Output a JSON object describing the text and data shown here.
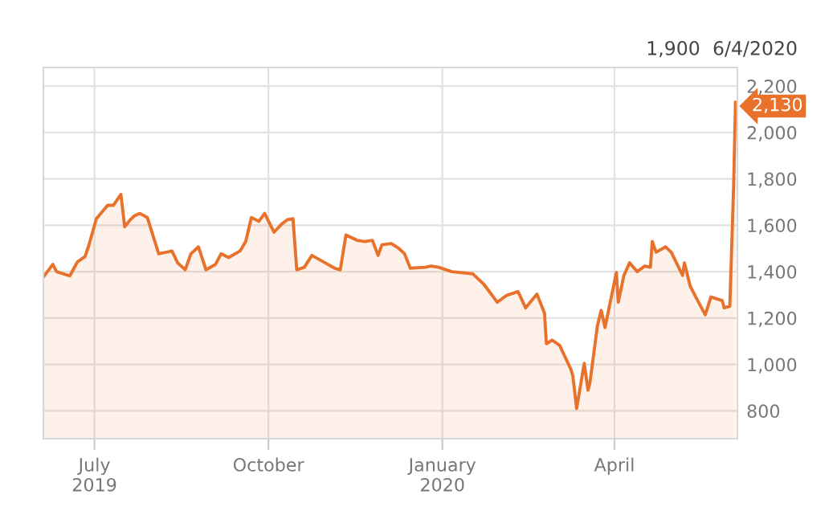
{
  "chart_data": {
    "type": "area",
    "x": [
      "2019-06-04",
      "2019-06-09",
      "2019-06-11",
      "2019-06-18",
      "2019-06-22",
      "2019-06-26",
      "2019-06-28",
      "2019-07-02",
      "2019-07-08",
      "2019-07-11",
      "2019-07-15",
      "2019-07-17",
      "2019-07-20",
      "2019-07-22",
      "2019-07-25",
      "2019-07-29",
      "2019-08-04",
      "2019-08-11",
      "2019-08-14",
      "2019-08-18",
      "2019-08-21",
      "2019-08-25",
      "2019-08-29",
      "2019-09-03",
      "2019-09-06",
      "2019-09-10",
      "2019-09-16",
      "2019-09-19",
      "2019-09-22",
      "2019-09-26",
      "2019-09-29",
      "2019-10-04",
      "2019-10-08",
      "2019-10-11",
      "2019-10-14",
      "2019-10-16",
      "2019-10-20",
      "2019-10-24",
      "2019-10-31",
      "2019-11-05",
      "2019-11-08",
      "2019-11-11",
      "2019-11-17",
      "2019-11-21",
      "2019-11-25",
      "2019-11-28",
      "2019-11-30",
      "2019-12-05",
      "2019-12-09",
      "2019-12-12",
      "2019-12-15",
      "2019-12-23",
      "2019-12-26",
      "2019-12-30",
      "2020-01-06",
      "2020-01-17",
      "2020-01-23",
      "2020-01-30",
      "2020-02-04",
      "2020-02-10",
      "2020-02-14",
      "2020-02-20",
      "2020-02-24",
      "2020-02-25",
      "2020-02-28",
      "2020-03-03",
      "2020-03-09",
      "2020-03-10",
      "2020-03-12",
      "2020-03-16",
      "2020-03-18",
      "2020-03-19",
      "2020-03-23",
      "2020-03-25",
      "2020-03-27",
      "2020-04-02",
      "2020-04-03",
      "2020-04-06",
      "2020-04-09",
      "2020-04-13",
      "2020-04-17",
      "2020-04-20",
      "2020-04-21",
      "2020-04-23",
      "2020-04-28",
      "2020-05-01",
      "2020-05-07",
      "2020-05-08",
      "2020-05-11",
      "2020-05-14",
      "2020-05-19",
      "2020-05-22",
      "2020-05-28",
      "2020-05-29",
      "2020-06-01",
      "2020-06-03",
      "2020-06-04"
    ],
    "series": [
      {
        "color": "#e8722c",
        "values": [
          1377,
          1431,
          1400,
          1382,
          1442,
          1465,
          1512,
          1628,
          1686,
          1686,
          1733,
          1593,
          1624,
          1640,
          1651,
          1633,
          1477,
          1489,
          1438,
          1408,
          1477,
          1507,
          1408,
          1431,
          1477,
          1461,
          1489,
          1530,
          1633,
          1617,
          1651,
          1570,
          1605,
          1624,
          1628,
          1408,
          1419,
          1470,
          1438,
          1415,
          1408,
          1558,
          1535,
          1530,
          1535,
          1470,
          1516,
          1521,
          1500,
          1477,
          1415,
          1419,
          1424,
          1419,
          1400,
          1391,
          1345,
          1268,
          1298,
          1314,
          1244,
          1303,
          1221,
          1089,
          1105,
          1082,
          978,
          950,
          810,
          1005,
          889,
          920,
          1168,
          1233,
          1159,
          1396,
          1268,
          1384,
          1438,
          1400,
          1424,
          1419,
          1530,
          1484,
          1507,
          1484,
          1384,
          1438,
          1338,
          1291,
          1214,
          1291,
          1275,
          1244,
          1251,
          1767,
          2130
        ]
      }
    ],
    "xlim": [
      "2019-06-04",
      "2020-06-05"
    ],
    "xticks": [
      {
        "value": "2019-07-01",
        "label": "July\n2019"
      },
      {
        "value": "2019-10-01",
        "label": "October"
      },
      {
        "value": "2020-01-01",
        "label": "January\n2020"
      },
      {
        "value": "2020-04-01",
        "label": "April"
      }
    ],
    "ylim": [
      680,
      2280
    ],
    "yticks": [
      {
        "value": 800,
        "label": "800"
      },
      {
        "value": 1000,
        "label": "1,000"
      },
      {
        "value": 1200,
        "label": "1,200"
      },
      {
        "value": 1400,
        "label": "1,400"
      },
      {
        "value": 1600,
        "label": "1,600"
      },
      {
        "value": 1800,
        "label": "1,800"
      },
      {
        "value": 2000,
        "label": "2,000"
      },
      {
        "value": 2200,
        "label": "2,200"
      }
    ],
    "grid": true,
    "legend": false,
    "annotations": [
      "1,900",
      "6/4/2020",
      "2,130"
    ]
  }
}
